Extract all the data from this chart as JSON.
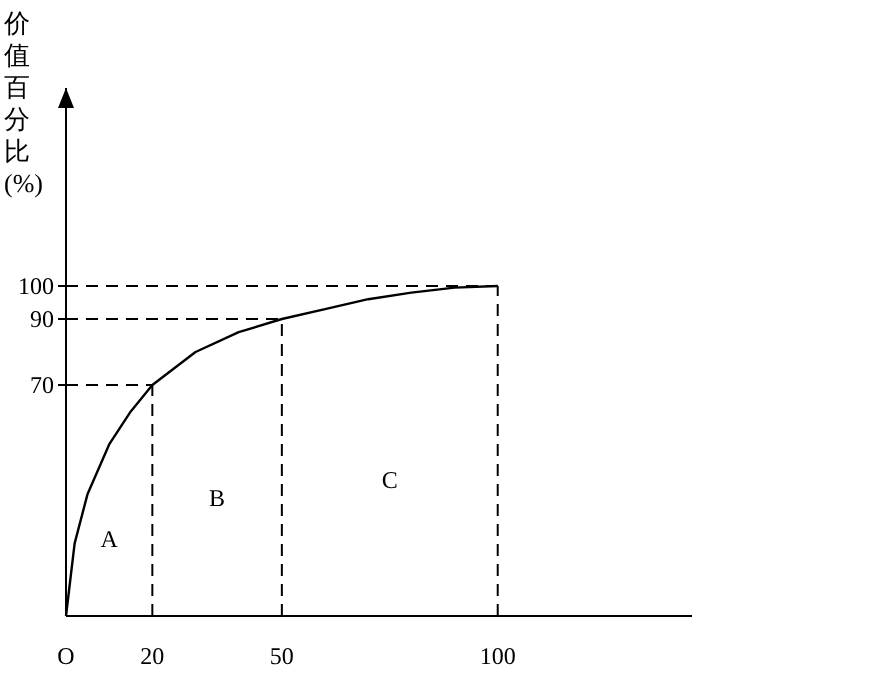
{
  "chart_data": {
    "type": "line",
    "ylabel": "价值百分比(%)",
    "x": [
      0,
      2,
      5,
      10,
      15,
      20,
      30,
      40,
      50,
      60,
      70,
      80,
      90,
      100
    ],
    "series": [
      {
        "color": "#000000",
        "values": [
          0,
          22,
          37,
          52,
          62,
          70,
          80,
          86,
          90,
          93,
          96,
          98,
          99.5,
          100
        ]
      }
    ],
    "xlim": [
      0,
      145
    ],
    "ylim": [
      0,
      160
    ],
    "xticks": [
      {
        "value": 0,
        "label": "O"
      },
      20,
      50,
      100
    ],
    "yticks": [
      70,
      90,
      100
    ],
    "ref_lines": [
      {
        "axis": "x",
        "value": 20,
        "line_style": "dashed"
      },
      {
        "axis": "x",
        "value": 50,
        "line_style": "dashed"
      },
      {
        "axis": "x",
        "value": 100,
        "line_style": "dashed"
      },
      {
        "axis": "y",
        "value": 70,
        "line_style": "dashed"
      },
      {
        "axis": "y",
        "value": 90,
        "line_style": "dashed"
      },
      {
        "axis": "y",
        "value": 100,
        "line_style": "dashed"
      }
    ],
    "annotations": [
      "A",
      "B",
      "C"
    ],
    "grid": false,
    "marker": "none",
    "line_style": "solid"
  }
}
